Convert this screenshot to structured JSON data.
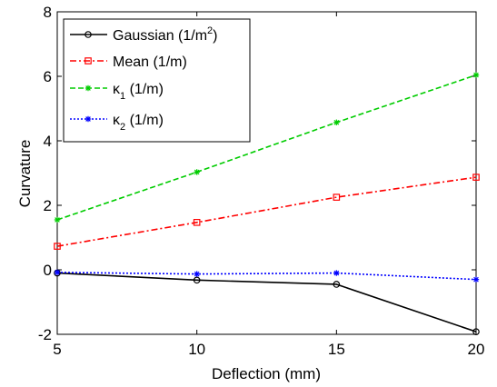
{
  "chart_data": {
    "type": "line",
    "xlabel": "Deflection (mm)",
    "ylabel": "Curvature",
    "x": [
      5,
      10,
      15,
      20
    ],
    "xlim": [
      5,
      20
    ],
    "ylim": [
      -2,
      8
    ],
    "xticks": [
      "5",
      "10",
      "15",
      "20"
    ],
    "yticks": [
      "-2",
      "0",
      "2",
      "4",
      "6",
      "8"
    ],
    "grid": false,
    "legend_position": "top-left",
    "series": [
      {
        "name": "Gaussian (1/m2)",
        "legend": {
          "base": "Gaussian (1/m",
          "sup": "2",
          "tail": ")"
        },
        "values": [
          -0.1,
          -0.32,
          -0.45,
          -1.92
        ],
        "color": "#000000",
        "line_style": "solid",
        "marker": "circle"
      },
      {
        "name": "Mean (1/m)",
        "legend": {
          "base": "Mean (1/m)"
        },
        "values": [
          0.73,
          1.47,
          2.25,
          2.87
        ],
        "color": "#ff0000",
        "line_style": "dash-dot",
        "marker": "square"
      },
      {
        "name": "κ1 (1/m)",
        "legend": {
          "base": "κ",
          "sub": "1",
          "tail": " (1/m)"
        },
        "values": [
          1.55,
          3.03,
          4.57,
          6.04
        ],
        "color": "#00cc00",
        "line_style": "dashed",
        "marker": "star"
      },
      {
        "name": "κ2 (1/m)",
        "legend": {
          "base": "κ",
          "sub": "2",
          "tail": " (1/m)"
        },
        "values": [
          -0.08,
          -0.13,
          -0.1,
          -0.3
        ],
        "color": "#0000ff",
        "line_style": "dotted",
        "marker": "star"
      }
    ]
  }
}
